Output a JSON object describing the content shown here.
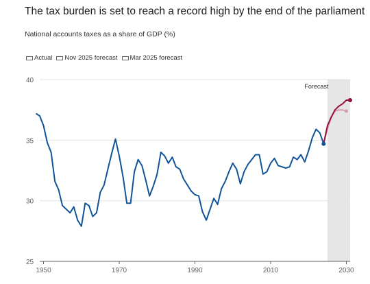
{
  "header": {
    "title": "The tax burden is set to reach a record high by the end of the parliament",
    "subtitle": "National accounts taxes as a share of GDP (%)"
  },
  "chart_data": {
    "type": "line",
    "title": "The tax burden is set to reach a record high by the end of the parliament",
    "subtitle": "National accounts taxes as a share of GDP (%)",
    "xlabel": "",
    "ylabel": "",
    "xlim": [
      1949,
      2031
    ],
    "ylim": [
      25,
      40
    ],
    "x_ticks": [
      "1950",
      "1970",
      "1990",
      "2010",
      "2030"
    ],
    "y_ticks": [
      "25",
      "30",
      "35",
      "40"
    ],
    "grid": "horizontal",
    "legend_position": "top-left",
    "annotations": [
      {
        "text": "Forecast",
        "x_start": 2025,
        "x_end": 2031
      }
    ],
    "series": [
      {
        "name": "Actual",
        "color": "#0f5499",
        "points": [
          [
            1948,
            37.2
          ],
          [
            1949,
            37.0
          ],
          [
            1950,
            36.2
          ],
          [
            1951,
            34.8
          ],
          [
            1952,
            34.0
          ],
          [
            1953,
            31.6
          ],
          [
            1954,
            30.9
          ],
          [
            1955,
            29.6
          ],
          [
            1956,
            29.3
          ],
          [
            1957,
            29.0
          ],
          [
            1958,
            29.5
          ],
          [
            1959,
            28.4
          ],
          [
            1960,
            27.9
          ],
          [
            1961,
            29.8
          ],
          [
            1962,
            29.6
          ],
          [
            1963,
            28.7
          ],
          [
            1964,
            29.0
          ],
          [
            1965,
            30.7
          ],
          [
            1966,
            31.3
          ],
          [
            1967,
            32.6
          ],
          [
            1968,
            33.9
          ],
          [
            1969,
            35.1
          ],
          [
            1970,
            33.7
          ],
          [
            1971,
            32.0
          ],
          [
            1972,
            29.8
          ],
          [
            1973,
            29.8
          ],
          [
            1974,
            32.4
          ],
          [
            1975,
            33.4
          ],
          [
            1976,
            32.9
          ],
          [
            1977,
            31.7
          ],
          [
            1978,
            30.4
          ],
          [
            1979,
            31.2
          ],
          [
            1980,
            32.2
          ],
          [
            1981,
            34.0
          ],
          [
            1982,
            33.7
          ],
          [
            1983,
            33.1
          ],
          [
            1984,
            33.6
          ],
          [
            1985,
            32.8
          ],
          [
            1986,
            32.6
          ],
          [
            1987,
            31.8
          ],
          [
            1988,
            31.3
          ],
          [
            1989,
            30.8
          ],
          [
            1990,
            30.5
          ],
          [
            1991,
            30.4
          ],
          [
            1992,
            29.1
          ],
          [
            1993,
            28.4
          ],
          [
            1994,
            29.3
          ],
          [
            1995,
            30.2
          ],
          [
            1996,
            29.7
          ],
          [
            1997,
            31.0
          ],
          [
            1998,
            31.6
          ],
          [
            1999,
            32.4
          ],
          [
            2000,
            33.1
          ],
          [
            2001,
            32.6
          ],
          [
            2002,
            31.4
          ],
          [
            2003,
            32.4
          ],
          [
            2004,
            33.0
          ],
          [
            2005,
            33.4
          ],
          [
            2006,
            33.8
          ],
          [
            2007,
            33.8
          ],
          [
            2008,
            32.2
          ],
          [
            2009,
            32.4
          ],
          [
            2010,
            33.1
          ],
          [
            2011,
            33.5
          ],
          [
            2012,
            32.9
          ],
          [
            2013,
            32.8
          ],
          [
            2014,
            32.7
          ],
          [
            2015,
            32.8
          ],
          [
            2016,
            33.6
          ],
          [
            2017,
            33.4
          ],
          [
            2018,
            33.8
          ],
          [
            2019,
            33.2
          ],
          [
            2020,
            34.1
          ],
          [
            2021,
            35.2
          ],
          [
            2022,
            35.9
          ],
          [
            2023,
            35.6
          ],
          [
            2024,
            34.7
          ]
        ]
      },
      {
        "name": "Nov 2025 forecast",
        "color": "#990f3d",
        "points": [
          [
            2024,
            34.7
          ],
          [
            2025,
            36.2
          ],
          [
            2026,
            36.9
          ],
          [
            2027,
            37.5
          ],
          [
            2028,
            37.8
          ],
          [
            2029,
            38.0
          ],
          [
            2030,
            38.3
          ],
          [
            2031,
            38.3
          ]
        ]
      },
      {
        "name": "Mar 2025 forecast",
        "color": "#d79bab",
        "points": [
          [
            2024,
            34.7
          ],
          [
            2025,
            35.9
          ],
          [
            2026,
            36.9
          ],
          [
            2027,
            37.4
          ],
          [
            2028,
            37.5
          ],
          [
            2029,
            37.5
          ],
          [
            2030,
            37.4
          ]
        ]
      }
    ]
  }
}
